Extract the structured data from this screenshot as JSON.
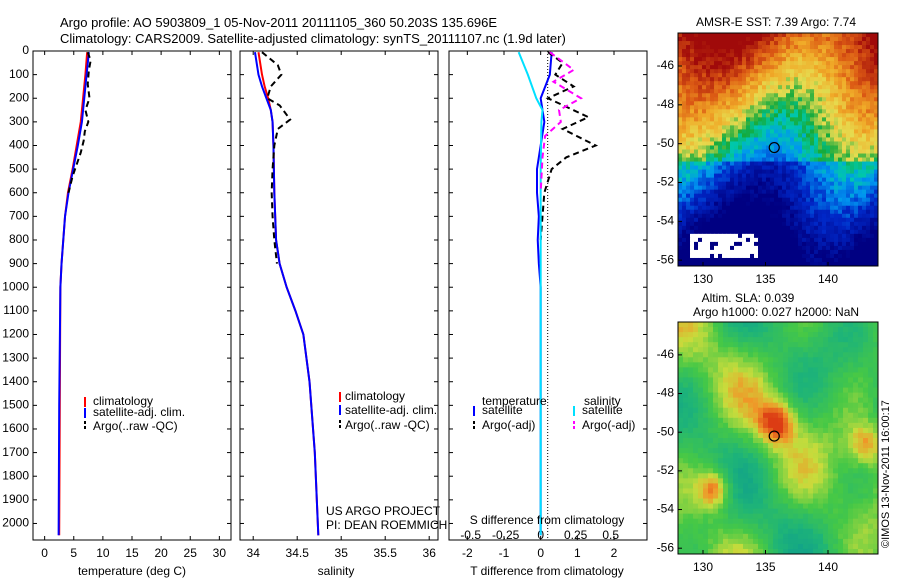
{
  "header": {
    "line1": "Argo profile: AO 5903809_1 05-Nov-2011 20111105_360 50.203S 135.696E",
    "line2": "Climatology: CARS2009. Satellite-adjusted climatology: synTS_20111107.nc (1.9d later)"
  },
  "colors": {
    "climatology": "#ff0000",
    "satellite": "#0000ff",
    "argo": "#000000",
    "salinity_satellite": "#00e0ff",
    "salinity_argo": "#ff00ff"
  },
  "chart_data": [
    {
      "type": "line",
      "xlabel": "temperature (deg C)",
      "xticks": [
        "0",
        "5",
        "10",
        "15",
        "20",
        "25",
        "30"
      ],
      "xlim": [
        -2,
        32
      ],
      "ylim": [
        2070,
        0
      ],
      "yticks": [
        "0",
        "100",
        "200",
        "300",
        "400",
        "500",
        "600",
        "700",
        "800",
        "900",
        "1000",
        "1100",
        "1200",
        "1300",
        "1400",
        "1500",
        "1600",
        "1700",
        "1800",
        "1900",
        "2000"
      ],
      "legend": [
        "climatology",
        "satellite-adj. clim.",
        "Argo(..raw -QC)"
      ],
      "series": [
        {
          "name": "climatology",
          "color": "#ff0000",
          "style": "solid",
          "x": [
            7.3,
            7.0,
            6.6,
            6.2,
            5.5,
            4.8,
            4.0,
            3.5,
            3.2,
            2.9,
            2.7,
            2.6,
            2.5
          ],
          "y": [
            5,
            100,
            200,
            300,
            400,
            500,
            600,
            700,
            800,
            900,
            1000,
            1500,
            2050
          ]
        },
        {
          "name": "satellite-adj. clim.",
          "color": "#0000ff",
          "style": "solid",
          "x": [
            7.6,
            7.2,
            6.8,
            6.4,
            5.7,
            4.9,
            4.1,
            3.5,
            3.2,
            2.9,
            2.7,
            2.5,
            2.4
          ],
          "y": [
            5,
            100,
            200,
            300,
            400,
            500,
            600,
            700,
            800,
            900,
            1000,
            1500,
            2050
          ]
        },
        {
          "name": "Argo(..raw -QC)",
          "color": "#000000",
          "style": "dashed",
          "x": [
            7.4,
            7.9,
            7.6,
            7.4,
            7.7,
            7.0,
            7.5,
            6.9,
            6.7,
            6.2,
            5.5,
            4.8,
            4.1
          ],
          "y": [
            5,
            40,
            80,
            140,
            200,
            250,
            300,
            340,
            380,
            430,
            480,
            530,
            600
          ]
        }
      ]
    },
    {
      "type": "line",
      "xlabel": "salinity",
      "xticks": [
        "34",
        "34.5",
        "35",
        "35.5",
        "36"
      ],
      "xlim": [
        33.85,
        36.1
      ],
      "ylim": [
        2070,
        0
      ],
      "legend": [
        "climatology",
        "satellite-adj. clim.",
        "Argo(..raw -QC)"
      ],
      "annotation": [
        "US ARGO PROJECT",
        "PI: DEAN ROEMMICH"
      ],
      "series": [
        {
          "name": "climatology",
          "color": "#ff0000",
          "style": "solid",
          "x": [
            34.06,
            34.1,
            34.13,
            34.17,
            34.2,
            34.22,
            34.23,
            34.24,
            34.26,
            34.3,
            34.38,
            34.48,
            34.57,
            34.64,
            34.7,
            34.74
          ],
          "y": [
            5,
            100,
            150,
            200,
            250,
            300,
            400,
            600,
            800,
            900,
            1000,
            1100,
            1200,
            1400,
            1700,
            2050
          ]
        },
        {
          "name": "satellite-adj. clim.",
          "color": "#0000ff",
          "style": "solid",
          "x": [
            34.02,
            34.06,
            34.1,
            34.15,
            34.2,
            34.22,
            34.23,
            34.24,
            34.26,
            34.3,
            34.38,
            34.48,
            34.57,
            34.64,
            34.7,
            34.74
          ],
          "y": [
            5,
            100,
            150,
            200,
            250,
            300,
            400,
            600,
            800,
            900,
            1000,
            1100,
            1200,
            1400,
            1700,
            2050
          ]
        },
        {
          "name": "Argo(..raw -QC)",
          "color": "#000000",
          "style": "dashed",
          "x": [
            34.1,
            34.28,
            34.32,
            34.2,
            34.16,
            34.3,
            34.42,
            34.28,
            34.24,
            34.22,
            34.21,
            34.22,
            34.24,
            34.27
          ],
          "y": [
            5,
            60,
            100,
            150,
            200,
            230,
            290,
            330,
            400,
            500,
            600,
            700,
            800,
            900
          ]
        }
      ]
    },
    {
      "type": "line",
      "xlabel": "T difference from climatology",
      "xticks": [
        "-2",
        "-1",
        "0",
        "1",
        "2"
      ],
      "xlim": [
        -2.5,
        2.9
      ],
      "top_axis_label": "S difference from climatology",
      "top_ticks": [
        "-0.5",
        "-0.25",
        "0",
        "0.25",
        "0.5"
      ],
      "ylim": [
        2070,
        0
      ],
      "legend_headers": [
        "temperature",
        "salinity"
      ],
      "legend": [
        "satellite",
        "Argo(-adj)",
        "satellite",
        "Argo(-adj)"
      ],
      "series": [
        {
          "name": "satellite",
          "color": "#0000ff",
          "style": "solid",
          "x": [
            0.3,
            0.25,
            0.0,
            0.1,
            0.0,
            -0.1,
            -0.1,
            -0.05,
            -0.08,
            -0.05,
            0.0,
            0.0,
            0.0
          ],
          "y": [
            5,
            100,
            200,
            300,
            400,
            500,
            600,
            700,
            800,
            900,
            1000,
            1500,
            2050
          ]
        },
        {
          "name": "Argo(-adj)",
          "color": "#000000",
          "style": "dashed",
          "x": [
            0.2,
            0.6,
            0.4,
            0.9,
            0.2,
            1.3,
            0.6,
            1.5,
            0.7,
            0.3,
            0.1,
            0.0
          ],
          "y": [
            5,
            50,
            100,
            150,
            200,
            280,
            330,
            400,
            450,
            500,
            600,
            800
          ]
        },
        {
          "name": "satellite",
          "color": "#00e0ff",
          "style": "solid",
          "x": [
            -0.6,
            -0.35,
            -0.12,
            0.05,
            0.02,
            0.0,
            0.0,
            0.0,
            0.0
          ],
          "y": [
            5,
            100,
            200,
            250,
            300,
            500,
            800,
            1000,
            2050
          ]
        },
        {
          "name": "Argo(-adj)",
          "color": "#ff00ff",
          "style": "dashed",
          "x": [
            0.25,
            0.9,
            0.35,
            1.1,
            0.5,
            0.55,
            0.12,
            0.05,
            0.0
          ],
          "y": [
            5,
            80,
            130,
            200,
            250,
            300,
            360,
            450,
            600
          ]
        }
      ]
    },
    {
      "type": "heatmap",
      "title": "AMSR-E SST: 7.39 Argo: 7.74",
      "xticks": [
        "130",
        "135",
        "140"
      ],
      "yticks": [
        "-46",
        "-48",
        "-50",
        "-52",
        "-54",
        "-56"
      ],
      "xlim": [
        128,
        144
      ],
      "ylim": [
        -56.3,
        -44.3
      ],
      "marker": {
        "lon": 135.7,
        "lat": -50.2
      }
    },
    {
      "type": "heatmap",
      "title_lines": [
        "Altim. SLA: 0.039",
        "Argo h1000: 0.027 h2000: NaN"
      ],
      "xticks": [
        "130",
        "135",
        "140"
      ],
      "yticks": [
        "-46",
        "-48",
        "-50",
        "-52",
        "-54",
        "-56"
      ],
      "xlim": [
        128,
        144
      ],
      "ylim": [
        -56.3,
        -44.3
      ],
      "marker": {
        "lon": 135.7,
        "lat": -50.2
      },
      "side_label": "©IMOS 13-Nov-2011 16:00:17"
    }
  ]
}
